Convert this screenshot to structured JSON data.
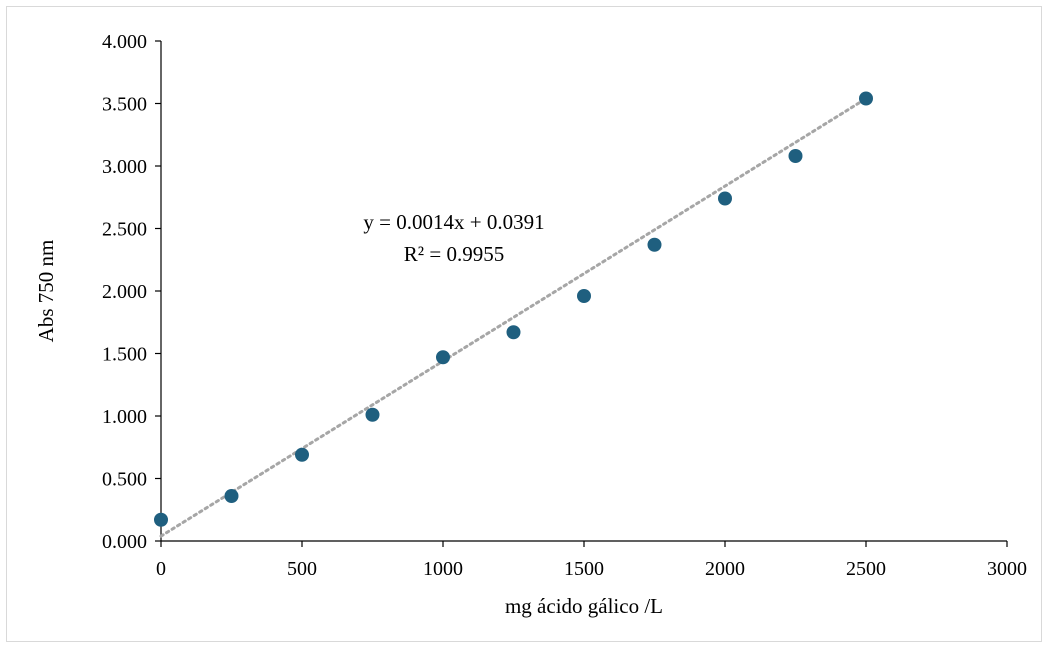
{
  "chart_data": {
    "type": "scatter",
    "title": "",
    "xlabel": "mg ácido gálico /L",
    "ylabel": "Abs 750 nm",
    "xlim": [
      0,
      3000
    ],
    "ylim": [
      0,
      4.0
    ],
    "x_ticks": [
      0,
      500,
      1000,
      1500,
      2000,
      2500,
      3000
    ],
    "x_tick_labels": [
      "0",
      "500",
      "1000",
      "1500",
      "2000",
      "2500",
      "3000"
    ],
    "y_ticks": [
      0,
      0.5,
      1.0,
      1.5,
      2.0,
      2.5,
      3.0,
      3.5,
      4.0
    ],
    "y_tick_labels": [
      "0.000",
      "0.500",
      "1.000",
      "1.500",
      "2.000",
      "2.500",
      "3.000",
      "3.500",
      "4.000"
    ],
    "grid": false,
    "series": [
      {
        "x": [
          0,
          250,
          500,
          750,
          1000,
          1250,
          1500,
          1750,
          2000,
          2250,
          2500
        ],
        "y": [
          0.17,
          0.36,
          0.69,
          1.01,
          1.47,
          1.67,
          1.96,
          2.37,
          2.74,
          3.08,
          3.54
        ],
        "color": "#1f5f7f"
      }
    ],
    "trendline": {
      "slope": 0.0014,
      "intercept": 0.0391,
      "x_range": [
        0,
        2500
      ],
      "color": "#a6a6a6",
      "style": "dotted",
      "equation_text": "y = 0.0014x + 0.0391",
      "r2_text": "R² = 0.9955"
    }
  }
}
